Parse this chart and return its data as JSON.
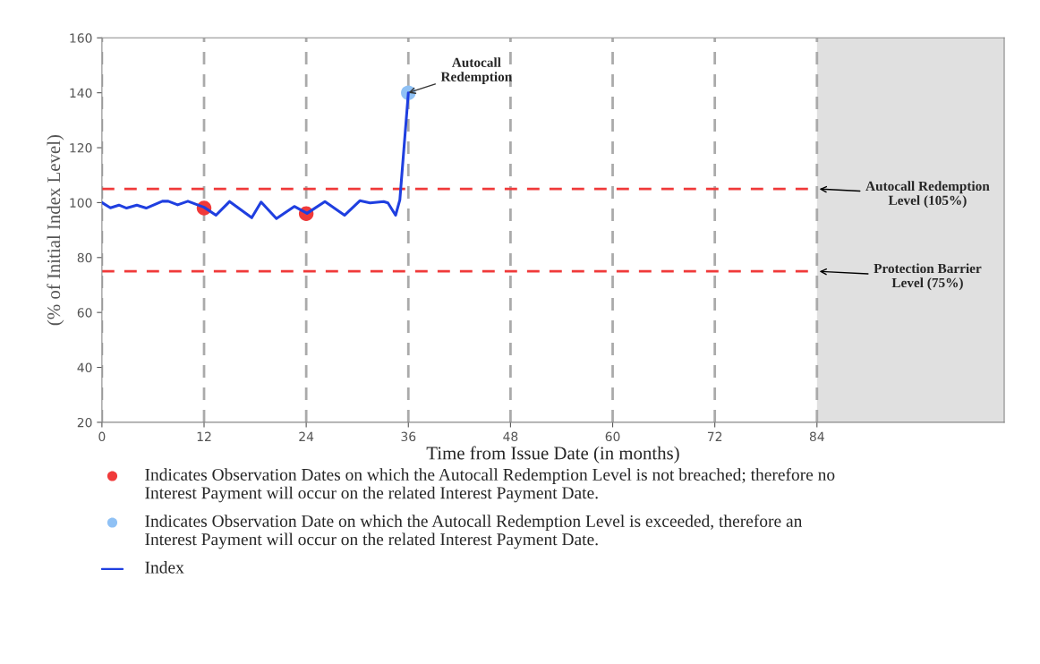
{
  "chart_data": {
    "type": "line",
    "xlabel": "Time from Issue Date (in months)",
    "ylabel": "(% of Initial Index Level)",
    "xlim": [
      0,
      106
    ],
    "xticks": [
      0,
      12,
      24,
      36,
      48,
      60,
      72,
      84
    ],
    "ylim": [
      20,
      160
    ],
    "yticks": [
      20,
      40,
      60,
      80,
      100,
      120,
      140,
      160
    ],
    "grid": "x",
    "legend": "bottom",
    "series": [
      {
        "name": "Index",
        "color": "#1f3fe0",
        "line_style": "solid",
        "marker": "none",
        "x": [
          0,
          1,
          2,
          2.9,
          4.1,
          5.2,
          7.1,
          7.8,
          8.9,
          10.1,
          12,
          13.4,
          15,
          17.6,
          18.7,
          20.5,
          22.6,
          24.1,
          26.2,
          28.5,
          30.3,
          31.5,
          33.1,
          33.6,
          34.5,
          35,
          36
        ],
        "values": [
          100,
          98.1,
          99.1,
          98,
          99.1,
          98,
          100.5,
          100.5,
          99.2,
          100.5,
          98.3,
          95.4,
          100.4,
          94.5,
          100.2,
          94.2,
          98.6,
          96.1,
          100.4,
          95.4,
          100.7,
          99.9,
          100.4,
          99.9,
          95.4,
          101,
          140
        ]
      },
      {
        "name": "Indicates Observation Dates on which the Autocall Redemption Level is not breached; therefore no\nInterest Payment will occur on the related Interest Payment Date.",
        "type": "scatter",
        "color": "#f03a3a",
        "marker": "circle",
        "x": [
          12,
          24
        ],
        "values": [
          98,
          96
        ]
      },
      {
        "name": "Indicates Observation Date on which the Autocall Redemption Level is exceeded, therefore an\nInterest Payment will occur on the related Interest Payment Date.",
        "type": "scatter",
        "color": "#8fc1f5",
        "marker": "circle",
        "x": [
          36
        ],
        "values": [
          140
        ]
      }
    ],
    "ref_lines": [
      {
        "axis": "y",
        "value": 105,
        "label": "Autocall Redemption\nLevel (105%)",
        "color": "#f03a3a",
        "line_style": "dashed"
      },
      {
        "axis": "y",
        "value": 75,
        "label": "Protection Barrier\nLevel (75%)",
        "color": "#f03a3a",
        "line_style": "dashed"
      }
    ],
    "bands": [
      {
        "axis": "x",
        "from": 84,
        "to": 106,
        "color": "#e0e0e0"
      }
    ],
    "annotations": [
      {
        "text": "Autocall\nRedemption",
        "x": 36,
        "y": 140
      }
    ]
  }
}
